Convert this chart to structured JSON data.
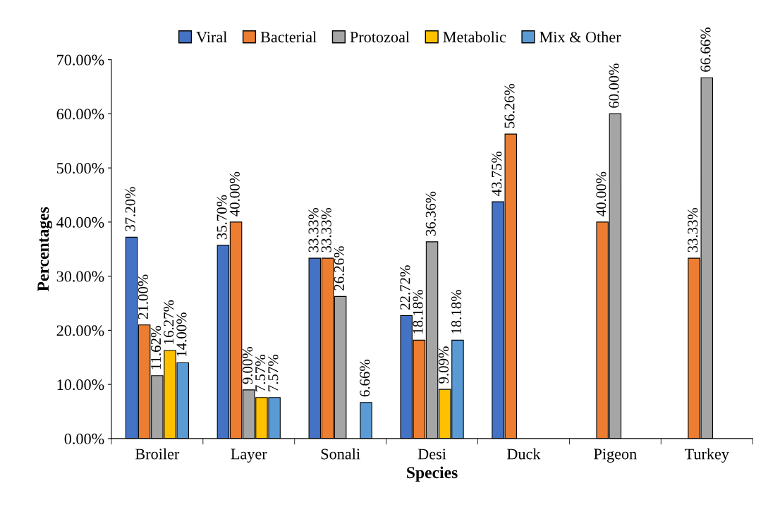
{
  "chart_data": {
    "type": "bar",
    "xlabel": "Species",
    "ylabel": "Percentages",
    "categories": [
      "Broiler",
      "Layer",
      "Sonali",
      "Desi",
      "Duck",
      "Pigeon",
      "Turkey"
    ],
    "series": [
      {
        "name": "Viral",
        "color": "#4472c4",
        "values": [
          37.2,
          35.7,
          33.33,
          22.72,
          43.75,
          null,
          null
        ],
        "value_labels": [
          "37.20%",
          "35.70%",
          "33.33%",
          "22.72%",
          "43.75%",
          null,
          null
        ]
      },
      {
        "name": "Bacterial",
        "color": "#ed7d31",
        "values": [
          21.0,
          40.0,
          33.33,
          18.18,
          56.26,
          40.0,
          33.33
        ],
        "value_labels": [
          "21.00%",
          "40.00%",
          "33.33%",
          "18.18%",
          "56.26%",
          "40.00%",
          "33.33%"
        ]
      },
      {
        "name": "Protozoal",
        "color": "#a5a5a5",
        "values": [
          11.62,
          9.0,
          26.26,
          36.36,
          null,
          60.0,
          66.66
        ],
        "value_labels": [
          "11.62%",
          "9.00%",
          "26.26%",
          "36.36%",
          null,
          "60.00%",
          "66.66%"
        ]
      },
      {
        "name": "Metabolic",
        "color": "#ffc000",
        "values": [
          16.27,
          7.57,
          null,
          9.09,
          null,
          null,
          null
        ],
        "value_labels": [
          "16.27%",
          "7.57%",
          null,
          "9.09%",
          null,
          null,
          null
        ]
      },
      {
        "name": "Mix & Other",
        "color": "#5b9bd5",
        "values": [
          14.0,
          7.57,
          6.66,
          18.18,
          null,
          null,
          null
        ],
        "value_labels": [
          "14.00%",
          "7.57%",
          "6.66%",
          "18.18%",
          null,
          null,
          null
        ]
      }
    ],
    "ylim": [
      0,
      70
    ],
    "yticks": [
      {
        "value": 0,
        "label": "0.00%"
      },
      {
        "value": 10,
        "label": "10.00%"
      },
      {
        "value": 20,
        "label": "20.00%"
      },
      {
        "value": 30,
        "label": "30.00%"
      },
      {
        "value": 40,
        "label": "40.00%"
      },
      {
        "value": 50,
        "label": "50.00%"
      },
      {
        "value": 60,
        "label": "60.00%"
      },
      {
        "value": 70,
        "label": "70.00%"
      }
    ],
    "grid": false,
    "legend": "top"
  }
}
